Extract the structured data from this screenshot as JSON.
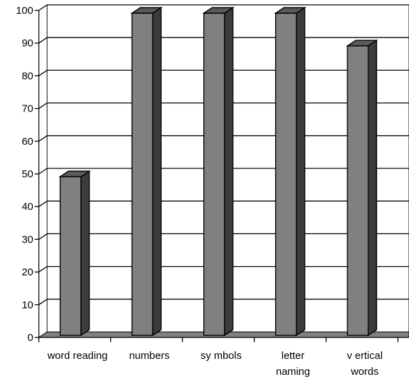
{
  "chart_data": {
    "type": "bar",
    "style": "3d",
    "categories": [
      [
        "word reading"
      ],
      [
        "numbers"
      ],
      [
        "sy mbols"
      ],
      [
        "letter",
        "naming"
      ],
      [
        "v ertical",
        "words"
      ]
    ],
    "values": [
      50,
      100,
      100,
      100,
      90
    ],
    "ylim": [
      0,
      100
    ],
    "yticks": [
      "0",
      "10",
      "20",
      "30",
      "40",
      "50",
      "60",
      "70",
      "80",
      "90",
      "100"
    ],
    "grid": true,
    "legend": "none",
    "title": "",
    "xlabel": "",
    "ylabel": ""
  },
  "colors": {
    "bar_front": "#808080",
    "bar_side": "#3c3c3c",
    "bar_top": "#5a5a5a",
    "floor": "#808080",
    "wall": "#ffffff",
    "grid": "#000000",
    "axis": "#000000"
  }
}
